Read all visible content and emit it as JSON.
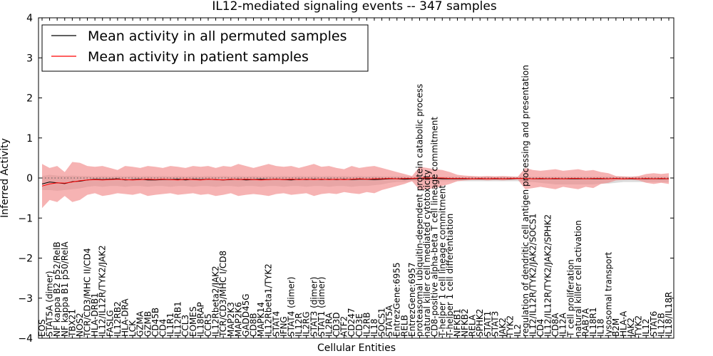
{
  "chart_data": {
    "type": "line",
    "title": "IL12-mediated signaling events -- 347 samples",
    "xlabel": "Cellular Entities",
    "ylabel": "Inferred Activity",
    "ylim": [
      -4,
      4
    ],
    "yticks": [
      4,
      3,
      2,
      1,
      0,
      -1,
      -2,
      -3,
      -4
    ],
    "legend": {
      "position": "top-left",
      "entries": [
        {
          "label": "Mean activity in all permuted samples",
          "color": "#000000"
        },
        {
          "label": "Mean activity in patient samples",
          "color": "#ff0000"
        }
      ]
    },
    "categories": [
      "EOS",
      "STAT5A (dimer)",
      "NF kappa B2 p52/RelB",
      "NF kappa B1 p50/RelA",
      "TBX21",
      "NOS2",
      "TCR/CD3/MHC II/CD4",
      "HLA-DRB1",
      "IL12/IL12R/TYK2/JAK2",
      "FASLG",
      "IL12RB2",
      "HLA-DRA",
      "LCK",
      "GZMA",
      "GZMB",
      "CD45B",
      "CD4",
      "IL1R1",
      "IL12RB1",
      "CCL3",
      "EOMES",
      "IL18RAP",
      "CCR5",
      "IL12Rbeta2/JAK2",
      "TCR/CD3/MHC I/CD8",
      "MAP2K3",
      "MAP2K6",
      "GADD45G",
      "CD8B",
      "MAPK14",
      "IL12Rbeta1/TYK2",
      "STAT4",
      "IFNG",
      "STAT4 (dimer)",
      "IL12R",
      "IL2RG",
      "STAT3 (dimer)",
      "STAT1 (dimer)",
      "IL2RA",
      "CD3D",
      "ATF2",
      "CD247",
      "CD3E",
      "IL2RB",
      "IL18",
      "SOCS1",
      "STAT5A",
      "EntrezGene:6955",
      "RELB",
      "EntrezGene:6957",
      "proteasomal ubiquitin-dependent protein catabolic process",
      "natural killer cell mediated cytotoxicity",
      "CD8-positive alpha-beta T cell lineage commitment",
      "T-helper 1 cell lineage commitment",
      "T-helper 1 cell differentiation",
      "NFKB1",
      "NFKB2",
      "RELA",
      "SPHK2",
      "STAT1",
      "STAT3",
      "JAK2",
      "TYK2",
      "IL2",
      "regulation of dendritic cell antigen processing and presentation",
      "IL12/IL12R/TYK2/JAK2/SOCS1",
      "CD4",
      "IL12/IL12R/TYK2/JAK2/SPHK2",
      "CD8A",
      "IL12A",
      "T cell proliferation",
      "natural killer cell activation",
      "RAB7A",
      "IL18R1",
      "IL18",
      "lysosomal transport",
      "B2M",
      "HLA-A",
      "JAK2",
      "TYK2",
      "IL12",
      "STAT6",
      "IL12B",
      "IL18/IL18R"
    ],
    "series": [
      {
        "name": "Mean activity in all permuted samples",
        "color": "#000000",
        "values": [
          -0.15,
          -0.1,
          -0.12,
          -0.14,
          -0.09,
          -0.08,
          -0.05,
          -0.03,
          -0.04,
          -0.03,
          -0.02,
          -0.05,
          -0.04,
          -0.03,
          -0.05,
          -0.05,
          -0.04,
          -0.04,
          -0.03,
          -0.05,
          -0.03,
          -0.04,
          -0.03,
          -0.04,
          -0.05,
          -0.04,
          -0.03,
          -0.05,
          -0.04,
          -0.03,
          -0.04,
          -0.03,
          -0.04,
          -0.05,
          -0.03,
          -0.04,
          -0.03,
          -0.04,
          -0.03,
          -0.04,
          -0.03,
          -0.04,
          -0.03,
          -0.03,
          -0.04,
          -0.03,
          -0.02,
          -0.02,
          -0.03,
          -0.02,
          -0.01,
          -0.01,
          -0.01,
          -0.02,
          -0.02,
          -0.02,
          -0.02,
          -0.02,
          -0.02,
          -0.02,
          -0.02,
          -0.02,
          -0.02,
          -0.01,
          -0.01,
          -0.02,
          -0.02,
          -0.02,
          -0.02,
          -0.02,
          -0.02,
          -0.02,
          -0.02,
          -0.02,
          -0.02,
          -0.02,
          -0.01,
          -0.02,
          -0.02,
          -0.02,
          -0.02,
          -0.02,
          -0.02,
          -0.02
        ]
      },
      {
        "name": "Mean activity in patient samples",
        "color": "#ff0000",
        "values": [
          -0.2,
          -0.15,
          -0.12,
          -0.13,
          -0.1,
          -0.07,
          -0.05,
          -0.04,
          -0.05,
          -0.04,
          -0.03,
          -0.04,
          -0.05,
          -0.04,
          -0.03,
          -0.04,
          -0.03,
          -0.04,
          -0.05,
          -0.03,
          -0.04,
          -0.05,
          -0.03,
          -0.04,
          -0.05,
          -0.03,
          -0.04,
          -0.03,
          -0.04,
          -0.05,
          -0.04,
          -0.03,
          -0.04,
          -0.03,
          -0.04,
          -0.03,
          -0.04,
          -0.03,
          -0.04,
          -0.03,
          -0.04,
          -0.03,
          -0.02,
          -0.03,
          -0.02,
          -0.02,
          -0.01,
          -0.02,
          -0.01,
          -0.01,
          0.0,
          0.0,
          0.0,
          0.0,
          -0.01,
          -0.01,
          -0.01,
          -0.02,
          -0.01,
          -0.02,
          -0.01,
          -0.02,
          -0.01,
          -0.01,
          -0.01,
          -0.02,
          -0.01,
          -0.02,
          -0.01,
          -0.02,
          -0.01,
          -0.01,
          -0.02,
          -0.01,
          -0.01,
          -0.02,
          -0.01,
          -0.02,
          -0.01,
          -0.02,
          -0.01,
          -0.02,
          -0.01,
          -0.02
        ],
        "upper": [
          0.35,
          0.25,
          0.3,
          0.15,
          0.4,
          0.38,
          0.3,
          0.28,
          0.3,
          0.25,
          0.2,
          0.3,
          0.28,
          0.25,
          0.3,
          0.28,
          0.25,
          0.3,
          0.28,
          0.25,
          0.3,
          0.28,
          0.3,
          0.25,
          0.3,
          0.28,
          0.35,
          0.3,
          0.25,
          0.3,
          0.35,
          0.3,
          0.28,
          0.3,
          0.25,
          0.3,
          0.35,
          0.28,
          0.3,
          0.25,
          0.22,
          0.3,
          0.25,
          0.28,
          0.3,
          0.25,
          0.2,
          0.15,
          0.1,
          0.05,
          0.28,
          0.25,
          0.22,
          0.2,
          0.15,
          0.08,
          0.06,
          0.05,
          0.04,
          0.05,
          0.04,
          0.05,
          0.04,
          0.03,
          0.25,
          0.2,
          0.18,
          0.2,
          0.22,
          0.18,
          0.2,
          0.22,
          0.18,
          0.2,
          0.15,
          0.12,
          0.05,
          0.04,
          0.03,
          0.05,
          0.1,
          0.12,
          0.1,
          0.12
        ],
        "lower": [
          -0.75,
          -0.55,
          -0.6,
          -0.45,
          -0.6,
          -0.55,
          -0.42,
          -0.38,
          -0.45,
          -0.42,
          -0.38,
          -0.4,
          -0.42,
          -0.38,
          -0.45,
          -0.42,
          -0.4,
          -0.38,
          -0.42,
          -0.4,
          -0.38,
          -0.42,
          -0.4,
          -0.45,
          -0.42,
          -0.38,
          -0.45,
          -0.42,
          -0.4,
          -0.42,
          -0.45,
          -0.4,
          -0.38,
          -0.42,
          -0.4,
          -0.38,
          -0.45,
          -0.4,
          -0.38,
          -0.4,
          -0.35,
          -0.38,
          -0.4,
          -0.35,
          -0.38,
          -0.3,
          -0.25,
          -0.2,
          -0.15,
          -0.08,
          -0.3,
          -0.28,
          -0.25,
          -0.2,
          -0.15,
          -0.08,
          -0.06,
          -0.05,
          -0.05,
          -0.06,
          -0.05,
          -0.06,
          -0.05,
          -0.04,
          -0.28,
          -0.25,
          -0.22,
          -0.25,
          -0.28,
          -0.22,
          -0.25,
          -0.28,
          -0.22,
          -0.25,
          -0.15,
          -0.12,
          -0.06,
          -0.05,
          -0.04,
          -0.06,
          -0.12,
          -0.15,
          -0.12,
          -0.15
        ]
      }
    ],
    "permuted_band": {
      "upper": [
        0.05,
        0.08,
        0.06,
        0.05,
        0.06,
        0.05,
        0.05,
        0.04,
        0.05,
        0.04,
        0.05,
        0.04,
        0.05,
        0.04,
        0.05,
        0.04,
        0.05,
        0.04,
        0.05,
        0.04,
        0.05,
        0.04,
        0.05,
        0.04,
        0.05,
        0.04,
        0.05,
        0.04,
        0.05,
        0.04,
        0.05,
        0.04,
        0.05,
        0.04,
        0.05,
        0.04,
        0.05,
        0.04,
        0.05,
        0.04,
        0.05,
        0.04,
        0.05,
        0.04,
        0.05,
        0.04,
        0.04,
        0.04,
        0.04,
        0.03,
        0.03,
        0.03,
        0.03,
        0.03,
        0.03,
        0.03,
        0.03,
        0.03,
        0.03,
        0.03,
        0.03,
        0.03,
        0.03,
        0.03,
        0.03,
        0.03,
        0.03,
        0.03,
        0.03,
        0.03,
        0.03,
        0.03,
        0.03,
        0.03,
        0.03,
        0.03,
        0.03,
        0.03,
        0.03,
        0.03,
        0.03,
        0.03,
        0.03,
        0.03
      ],
      "lower": [
        -0.3,
        -0.3,
        -0.32,
        -0.3,
        -0.28,
        -0.26,
        -0.22,
        -0.2,
        -0.22,
        -0.2,
        -0.2,
        -0.22,
        -0.2,
        -0.2,
        -0.22,
        -0.2,
        -0.2,
        -0.22,
        -0.2,
        -0.2,
        -0.22,
        -0.2,
        -0.2,
        -0.22,
        -0.2,
        -0.2,
        -0.22,
        -0.2,
        -0.2,
        -0.22,
        -0.2,
        -0.2,
        -0.22,
        -0.2,
        -0.2,
        -0.22,
        -0.2,
        -0.2,
        -0.22,
        -0.2,
        -0.2,
        -0.22,
        -0.2,
        -0.2,
        -0.18,
        -0.16,
        -0.12,
        -0.1,
        -0.1,
        -0.08,
        -0.08,
        -0.08,
        -0.08,
        -0.08,
        -0.08,
        -0.08,
        -0.08,
        -0.08,
        -0.08,
        -0.08,
        -0.08,
        -0.08,
        -0.08,
        -0.08,
        -0.1,
        -0.1,
        -0.12,
        -0.14,
        -0.16,
        -0.16,
        -0.16,
        -0.16,
        -0.16,
        -0.16,
        -0.14,
        -0.14,
        -0.12,
        -0.1,
        -0.1,
        -0.1,
        -0.1,
        -0.1,
        -0.1,
        -0.1
      ]
    }
  }
}
